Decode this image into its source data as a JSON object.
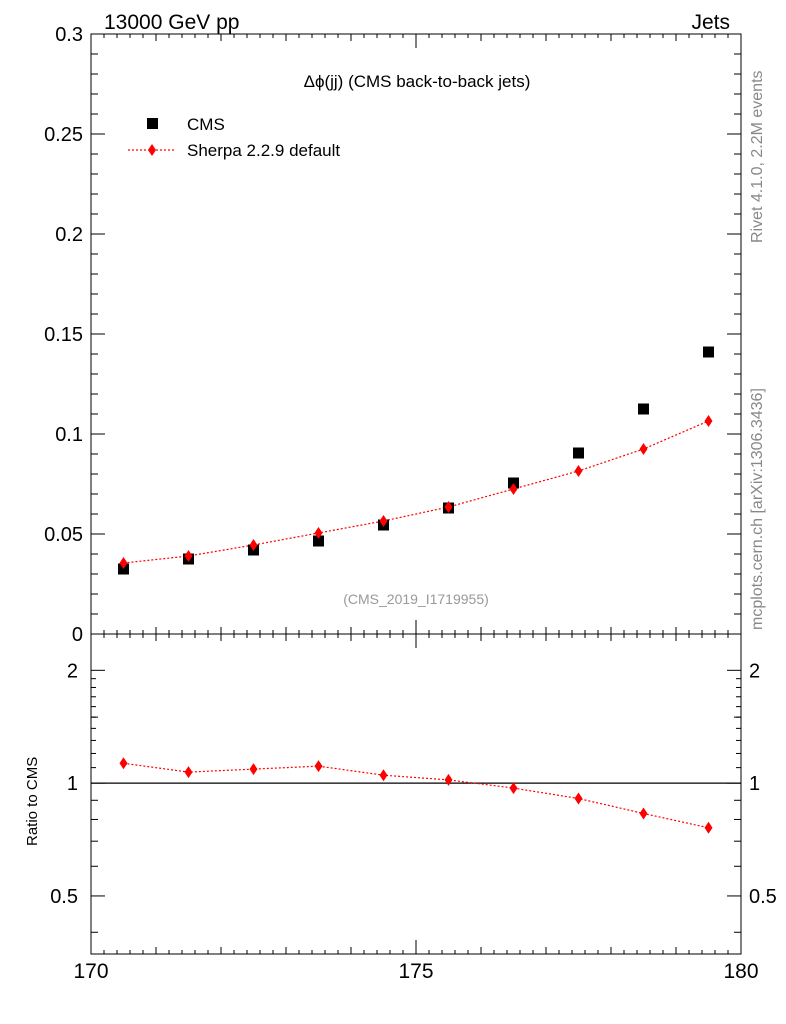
{
  "header": {
    "energy_label": "13000 GeV pp",
    "process_label": "Jets"
  },
  "side_labels": {
    "rivet": "Rivet 4.1.0,  2.2M events",
    "mcplots": "mcplots.cern.ch [arXiv:1306.3436]"
  },
  "colors": {
    "data": "#000000",
    "mc": "#ff0000",
    "watermark": "#999999",
    "side_text": "#888888"
  },
  "chart_data": [
    {
      "type": "scatter",
      "panel": "main",
      "title": "Δϕ(jj) (CMS back-to-back jets)",
      "analysis_id": "(CMS_2019_I1719955)",
      "xlabel": "",
      "ylabel": "",
      "xlim": [
        170,
        180
      ],
      "ylim": [
        0,
        0.3
      ],
      "yticks": [
        0,
        0.05,
        0.1,
        0.15,
        0.2,
        0.25,
        0.3
      ],
      "ytick_labels": [
        "0",
        "0.05",
        "0.1",
        "0.15",
        "0.2",
        "0.25",
        "0.3"
      ],
      "legend_position": "top-left",
      "series": [
        {
          "name": "CMS",
          "marker": "square",
          "x": [
            170.5,
            171.5,
            172.5,
            173.5,
            174.5,
            175.5,
            176.5,
            177.5,
            178.5,
            179.5
          ],
          "values": [
            0.0325,
            0.0375,
            0.042,
            0.0465,
            0.0545,
            0.063,
            0.0755,
            0.0905,
            0.1125,
            0.141
          ]
        },
        {
          "name": "Sherpa 2.2.9 default",
          "marker": "diamond",
          "line": "dotted",
          "x": [
            170.5,
            171.5,
            172.5,
            173.5,
            174.5,
            175.5,
            176.5,
            177.5,
            178.5,
            179.5
          ],
          "values": [
            0.0355,
            0.039,
            0.0445,
            0.0505,
            0.0565,
            0.0635,
            0.0725,
            0.0815,
            0.0925,
            0.1065
          ]
        }
      ]
    },
    {
      "type": "line",
      "panel": "ratio",
      "ylabel": "Ratio to CMS",
      "xlim": [
        170,
        180
      ],
      "ylim": [
        0.35,
        2.5
      ],
      "yscale": "log",
      "yticks": [
        0.5,
        1,
        2
      ],
      "ytick_labels": [
        "0.5",
        "1",
        "2"
      ],
      "xticks": [
        170,
        175,
        180
      ],
      "xtick_labels": [
        "170",
        "175",
        "180"
      ],
      "reference_line": 1,
      "series": [
        {
          "name": "Sherpa 2.2.9 default",
          "marker": "diamond",
          "line": "dotted",
          "x": [
            170.5,
            171.5,
            172.5,
            173.5,
            174.5,
            175.5,
            176.5,
            177.5,
            178.5,
            179.5
          ],
          "values": [
            1.13,
            1.07,
            1.09,
            1.11,
            1.05,
            1.02,
            0.97,
            0.91,
            0.83,
            0.76
          ]
        }
      ]
    }
  ]
}
